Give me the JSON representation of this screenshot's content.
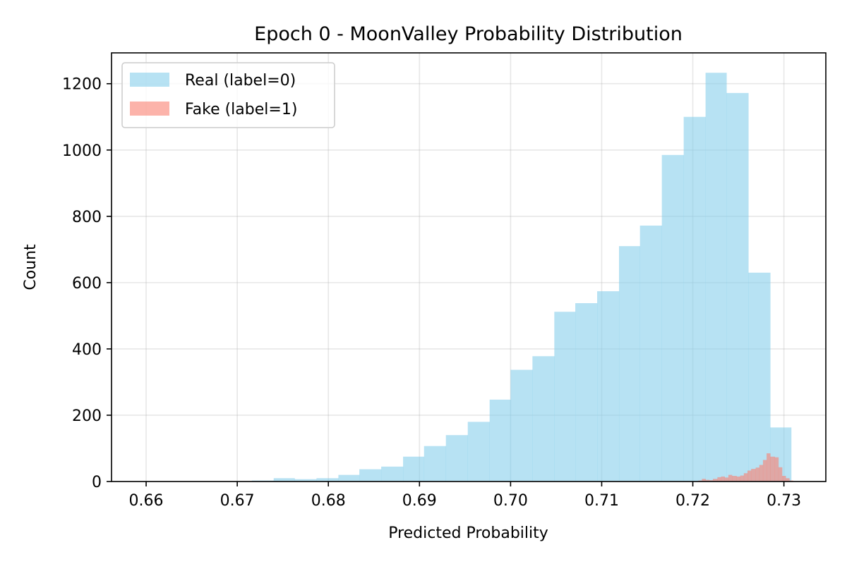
{
  "chart_data": {
    "type": "bar",
    "title": "Epoch 0 - MoonValley Probability Distribution",
    "xlabel": "Predicted Probability",
    "ylabel": "Count",
    "xlim": [
      0.6562,
      0.7346
    ],
    "ylim": [
      0,
      1293
    ],
    "xticks": [
      "0.66",
      "0.67",
      "0.68",
      "0.69",
      "0.70",
      "0.71",
      "0.72",
      "0.73"
    ],
    "xtick_values": [
      0.66,
      0.67,
      0.68,
      0.69,
      0.7,
      0.71,
      0.72,
      0.73
    ],
    "yticks": [
      "0",
      "200",
      "400",
      "600",
      "800",
      "1000",
      "1200"
    ],
    "ytick_values": [
      0,
      200,
      400,
      600,
      800,
      1000,
      1200
    ],
    "grid": true,
    "legend_position": "top-left",
    "series": [
      {
        "name": "Real (label=0)",
        "color": "#87ceeb",
        "opacity": 0.6,
        "bin_edges": [
          0.6597,
          0.6621,
          0.6645,
          0.6668,
          0.6692,
          0.6716,
          0.674,
          0.6763,
          0.6787,
          0.6811,
          0.6834,
          0.6858,
          0.6882,
          0.6905,
          0.6929,
          0.6953,
          0.6977,
          0.7,
          0.7024,
          0.7048,
          0.7071,
          0.7095,
          0.7119,
          0.7142,
          0.7166,
          0.719,
          0.7214,
          0.7237,
          0.7261,
          0.7285,
          0.7308
        ],
        "values": [
          1,
          1,
          0,
          0,
          1,
          3,
          10,
          7,
          10,
          20,
          37,
          45,
          75,
          107,
          140,
          180,
          247,
          337,
          378,
          512,
          538,
          574,
          710,
          772,
          985,
          1100,
          1233,
          1172,
          630,
          163
        ]
      },
      {
        "name": "Fake (label=1)",
        "color": "#fa8072",
        "opacity": 0.6,
        "bin_edges": [
          0.7201,
          0.7206,
          0.721,
          0.7214,
          0.7218,
          0.7222,
          0.7227,
          0.7231,
          0.7235,
          0.7239,
          0.7243,
          0.7248,
          0.7252,
          0.7256,
          0.726,
          0.7264,
          0.7269,
          0.7273,
          0.7277,
          0.7281,
          0.7285,
          0.729,
          0.7294,
          0.7298,
          0.7302,
          0.7306,
          0.731
        ],
        "values": [
          1,
          3,
          8,
          5,
          4,
          8,
          13,
          15,
          12,
          20,
          17,
          15,
          18,
          25,
          33,
          38,
          42,
          50,
          65,
          85,
          75,
          73,
          43,
          17,
          10,
          3
        ]
      }
    ]
  }
}
